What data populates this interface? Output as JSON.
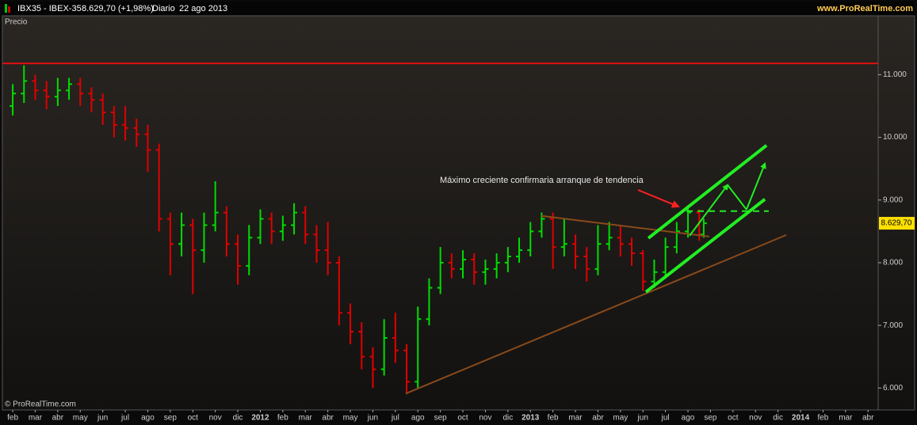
{
  "chart_data": {
    "type": "ohlc",
    "header_symbol": "IBX35 - IBEX-35",
    "header_quote": "8.629,70 (+1,98%)",
    "header_period": "Diario",
    "header_date": "22 ago 2013",
    "site": "www.ProRealTime.com",
    "panel_label": "Precio",
    "copyright": "© ProRealTime.com",
    "annotation": "Máximo creciente confirmaria  arranque de tendencia",
    "up_color": "#00dd00",
    "down_color": "#e00000",
    "grid": false,
    "xlim": [
      0.54,
      39.45
    ],
    "ylim": [
      5650,
      11940
    ],
    "xticks": [
      {
        "value": 1,
        "label": "feb"
      },
      {
        "value": 2,
        "label": "mar"
      },
      {
        "value": 3,
        "label": "abr"
      },
      {
        "value": 4,
        "label": "may"
      },
      {
        "value": 5,
        "label": "jun"
      },
      {
        "value": 6,
        "label": "jul"
      },
      {
        "value": 7,
        "label": "ago"
      },
      {
        "value": 8,
        "label": "sep"
      },
      {
        "value": 9,
        "label": "oct"
      },
      {
        "value": 10,
        "label": "nov"
      },
      {
        "value": 11,
        "label": "dic"
      },
      {
        "value": 12,
        "label": "2012"
      },
      {
        "value": 13,
        "label": "feb"
      },
      {
        "value": 14,
        "label": "mar"
      },
      {
        "value": 15,
        "label": "abr"
      },
      {
        "value": 16,
        "label": "may"
      },
      {
        "value": 17,
        "label": "jun"
      },
      {
        "value": 18,
        "label": "jul"
      },
      {
        "value": 19,
        "label": "ago"
      },
      {
        "value": 20,
        "label": "sep"
      },
      {
        "value": 21,
        "label": "oct"
      },
      {
        "value": 22,
        "label": "nov"
      },
      {
        "value": 23,
        "label": "dic"
      },
      {
        "value": 24,
        "label": "2013"
      },
      {
        "value": 25,
        "label": "feb"
      },
      {
        "value": 26,
        "label": "mar"
      },
      {
        "value": 27,
        "label": "abr"
      },
      {
        "value": 28,
        "label": "may"
      },
      {
        "value": 29,
        "label": "jun"
      },
      {
        "value": 30,
        "label": "jul"
      },
      {
        "value": 31,
        "label": "ago"
      },
      {
        "value": 32,
        "label": "sep"
      },
      {
        "value": 33,
        "label": "oct"
      },
      {
        "value": 34,
        "label": "nov"
      },
      {
        "value": 35,
        "label": "dic"
      },
      {
        "value": 36,
        "label": "2014"
      },
      {
        "value": 37,
        "label": "feb"
      },
      {
        "value": 38,
        "label": "mar"
      },
      {
        "value": 39,
        "label": "abr"
      }
    ],
    "yticks": [
      {
        "value": 6000,
        "label": "6.000"
      },
      {
        "value": 7000,
        "label": "7.000"
      },
      {
        "value": 8000,
        "label": "8.000"
      },
      {
        "value": 9000,
        "label": "9.000"
      },
      {
        "value": 10000,
        "label": "10.000"
      },
      {
        "value": 11000,
        "label": "11.000"
      }
    ],
    "last_price": {
      "value": 8629.7,
      "label": "8.629,70"
    },
    "x": [
      1.0,
      1.5,
      2.0,
      2.5,
      3.0,
      3.5,
      4.0,
      4.5,
      5.0,
      5.5,
      6.0,
      6.5,
      7.0,
      7.5,
      8.0,
      8.5,
      9.0,
      9.5,
      10.0,
      10.5,
      11.0,
      11.5,
      12.0,
      12.5,
      13.0,
      13.5,
      14.0,
      14.5,
      15.0,
      15.5,
      16.0,
      16.5,
      17.0,
      17.5,
      18.0,
      18.5,
      19.0,
      19.5,
      20.0,
      20.5,
      21.0,
      21.5,
      22.0,
      22.5,
      23.0,
      23.5,
      24.0,
      24.5,
      25.0,
      25.5,
      26.0,
      26.5,
      27.0,
      27.5,
      28.0,
      28.5,
      29.0,
      29.5,
      30.0,
      30.5,
      31.0,
      31.5,
      31.7
    ],
    "open": [
      10500,
      10700,
      10900,
      10750,
      10650,
      10750,
      10850,
      10700,
      10600,
      10400,
      10200,
      10150,
      10050,
      9800,
      8700,
      8300,
      8600,
      8200,
      8600,
      8800,
      8300,
      7950,
      8400,
      8700,
      8500,
      8600,
      8800,
      8450,
      8200,
      8000,
      7200,
      6900,
      6500,
      6300,
      6800,
      6600,
      6100,
      7100,
      7600,
      8000,
      7900,
      8050,
      7850,
      7900,
      8000,
      8100,
      8200,
      8500,
      8700,
      8250,
      8300,
      8100,
      7900,
      8300,
      8400,
      8300,
      8150,
      7700,
      7850,
      8250,
      8500,
      8800,
      8450
    ],
    "high": [
      10850,
      11150,
      11000,
      10900,
      10950,
      10950,
      10950,
      10800,
      10700,
      10500,
      10500,
      10300,
      10200,
      9900,
      8800,
      8800,
      8700,
      8800,
      9300,
      8900,
      8450,
      8600,
      8850,
      8800,
      8750,
      8950,
      8900,
      8600,
      8650,
      8100,
      7350,
      7050,
      6650,
      7100,
      7200,
      6700,
      7300,
      7750,
      8250,
      8150,
      8200,
      8150,
      8050,
      8150,
      8250,
      8400,
      8650,
      8800,
      8800,
      8700,
      8450,
      8250,
      8600,
      8650,
      8600,
      8400,
      8200,
      8050,
      8400,
      8650,
      8900,
      8850,
      8700
    ],
    "low": [
      10350,
      10550,
      10600,
      10450,
      10500,
      10600,
      10500,
      10400,
      10200,
      10000,
      9950,
      9850,
      9450,
      8500,
      7800,
      8100,
      7500,
      8000,
      8500,
      8100,
      7650,
      7800,
      8300,
      8300,
      8350,
      8450,
      8300,
      8000,
      7800,
      7000,
      6700,
      6300,
      6000,
      6200,
      6400,
      5900,
      6000,
      7000,
      7500,
      7750,
      7750,
      7650,
      7650,
      7750,
      7850,
      8000,
      8100,
      8400,
      7900,
      8100,
      7900,
      7700,
      7800,
      8200,
      8100,
      7950,
      7550,
      7600,
      7750,
      8150,
      8400,
      8350,
      8400
    ],
    "close": [
      10700,
      10900,
      10750,
      10650,
      10750,
      10850,
      10700,
      10600,
      10400,
      10200,
      10150,
      10050,
      9800,
      8700,
      8300,
      8600,
      8200,
      8600,
      8800,
      8300,
      7950,
      8400,
      8700,
      8500,
      8600,
      8800,
      8450,
      8200,
      8000,
      7200,
      6900,
      6500,
      6300,
      6800,
      6600,
      6100,
      7100,
      7600,
      8000,
      7900,
      8050,
      7850,
      7900,
      8000,
      8100,
      8200,
      8500,
      8700,
      8250,
      8300,
      8100,
      7900,
      8300,
      8400,
      8300,
      8150,
      7700,
      7850,
      8250,
      8500,
      8800,
      8450,
      8629.7
    ],
    "lines": [
      {
        "color": "#e01010",
        "x": [
          0.54,
          39.45
        ],
        "y": [
          11180,
          11180
        ],
        "width": 2,
        "dashed": false,
        "arrow": false
      },
      {
        "color": "#8a4a1a",
        "x": [
          18.46,
          35.37
        ],
        "y": [
          5911,
          8443
        ],
        "width": 2,
        "dashed": false,
        "arrow": false
      },
      {
        "color": "#8a4a1a",
        "x": [
          24.49,
          31.95
        ],
        "y": [
          8747,
          8418
        ],
        "width": 2,
        "dashed": false,
        "arrow": false
      },
      {
        "color": "#22ee22",
        "x": [
          29.24,
          34.49
        ],
        "y": [
          8392,
          9873
        ],
        "width": 4,
        "dashed": false,
        "arrow": false
      },
      {
        "color": "#22ee22",
        "x": [
          29.13,
          34.42
        ],
        "y": [
          7532,
          9013
        ],
        "width": 4,
        "dashed": false,
        "arrow": false
      },
      {
        "color": "#22ee22",
        "x": [
          30.93,
          34.59
        ],
        "y": [
          8823,
          8823
        ],
        "width": 2,
        "dashed": true,
        "arrow": false
      },
      {
        "color": "#22ee22",
        "x": [
          31.07,
          32.76
        ],
        "y": [
          8430,
          9241
        ],
        "width": 2,
        "dashed": false,
        "arrow": true
      },
      {
        "color": "#22ee22",
        "x": [
          32.76,
          33.6
        ],
        "y": [
          9241,
          8848
        ],
        "width": 2,
        "dashed": false,
        "arrow": false
      },
      {
        "color": "#22ee22",
        "x": [
          33.6,
          34.42
        ],
        "y": [
          8848,
          9582
        ],
        "width": 2,
        "dashed": false,
        "arrow": true
      }
    ]
  }
}
